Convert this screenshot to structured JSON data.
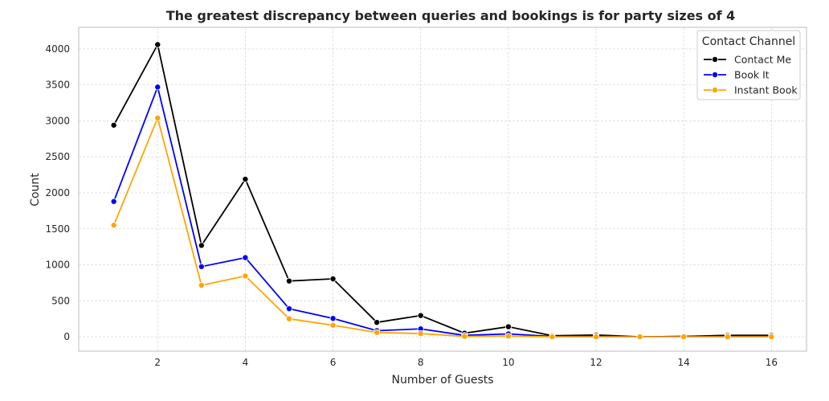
{
  "chart_data": {
    "type": "line",
    "title": "The greatest discrepancy between queries and bookings is for party sizes of 4",
    "xlabel": "Number of Guests",
    "ylabel": "Count",
    "x": [
      1,
      2,
      3,
      4,
      5,
      6,
      7,
      8,
      9,
      10,
      11,
      12,
      13,
      14,
      15,
      16
    ],
    "xlim": [
      0.2,
      16.8
    ],
    "ylim": [
      -200,
      4300
    ],
    "xticks": [
      2,
      4,
      6,
      8,
      10,
      12,
      14,
      16
    ],
    "yticks": [
      0,
      500,
      1000,
      1500,
      2000,
      2500,
      3000,
      3500,
      4000
    ],
    "grid": true,
    "legend": {
      "title": "Contact Channel",
      "placement": "top-right"
    },
    "series": [
      {
        "name": "Contact Me",
        "color": "#000000",
        "values": [
          2940,
          4060,
          1270,
          2190,
          775,
          805,
          200,
          295,
          50,
          140,
          15,
          25,
          0,
          5,
          20,
          20
        ]
      },
      {
        "name": "Book It",
        "color": "#0000ff",
        "values": [
          1880,
          3470,
          975,
          1100,
          390,
          255,
          85,
          110,
          20,
          40,
          5,
          10,
          0,
          5,
          5,
          5
        ]
      },
      {
        "name": "Instant Book",
        "color": "#ffa500",
        "values": [
          1550,
          3040,
          715,
          845,
          250,
          160,
          60,
          45,
          5,
          10,
          0,
          0,
          0,
          0,
          0,
          0
        ]
      }
    ]
  }
}
